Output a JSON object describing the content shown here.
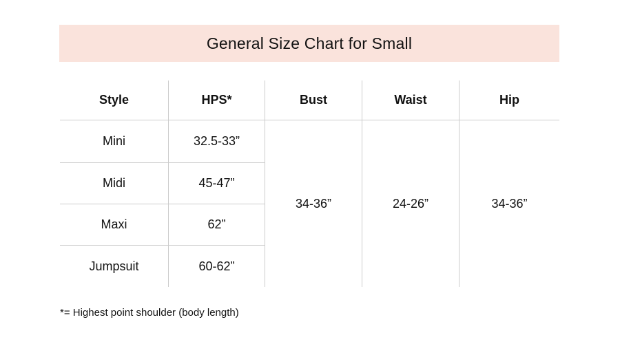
{
  "banner": {
    "title": "General Size Chart for Small"
  },
  "chart_data": {
    "type": "table",
    "title": "General Size Chart for Small",
    "columns": [
      "Style",
      "HPS*",
      "Bust",
      "Waist",
      "Hip"
    ],
    "rows": [
      {
        "style": "Mini",
        "hps": "32.5-33”"
      },
      {
        "style": "Midi",
        "hps": "45-47”"
      },
      {
        "style": "Maxi",
        "hps": "62”"
      },
      {
        "style": "Jumpsuit",
        "hps": "60-62”"
      }
    ],
    "merged": {
      "bust": "34-36”",
      "waist": "24-26”",
      "hip": "34-36”"
    }
  },
  "footnote": "*= Highest point shoulder (body length)",
  "colors": {
    "banner_bg": "#fae3dc",
    "grid_line": "#cccccc",
    "text": "#111111"
  }
}
